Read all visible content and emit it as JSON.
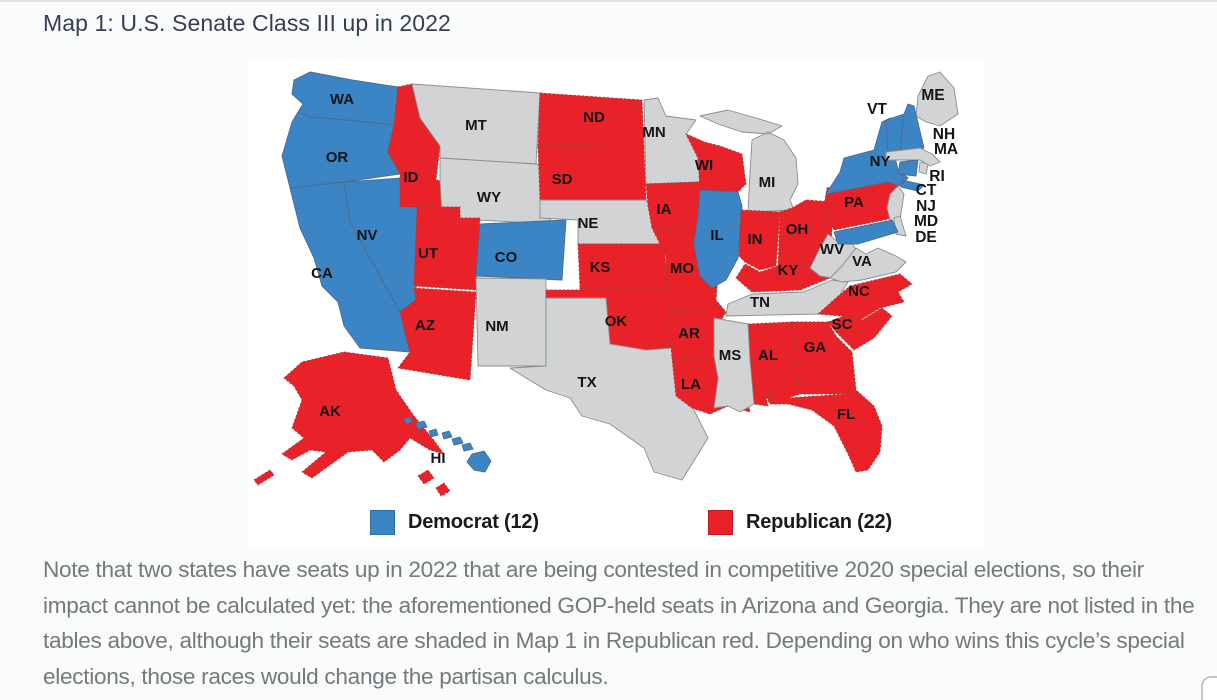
{
  "page": {
    "title": "Map 1: U.S. Senate Class III up in 2022"
  },
  "map": {
    "colors": {
      "democrat": "#3c85c4",
      "republican": "#e92128",
      "not_up": "#d1d3d4"
    },
    "legend": [
      {
        "label": "Democrat (12)",
        "party": "democrat"
      },
      {
        "label": "Republican (22)",
        "party": "republican"
      }
    ],
    "states": [
      {
        "id": "WA",
        "label": "WA",
        "party": "democrat"
      },
      {
        "id": "OR",
        "label": "OR",
        "party": "democrat"
      },
      {
        "id": "CA",
        "label": "CA",
        "party": "democrat"
      },
      {
        "id": "NV",
        "label": "NV",
        "party": "democrat"
      },
      {
        "id": "ID",
        "label": "ID",
        "party": "republican"
      },
      {
        "id": "MT",
        "label": "MT",
        "party": "not_up"
      },
      {
        "id": "WY",
        "label": "WY",
        "party": "not_up"
      },
      {
        "id": "UT",
        "label": "UT",
        "party": "republican"
      },
      {
        "id": "CO",
        "label": "CO",
        "party": "democrat"
      },
      {
        "id": "AZ",
        "label": "AZ",
        "party": "republican"
      },
      {
        "id": "NM",
        "label": "NM",
        "party": "not_up"
      },
      {
        "id": "ND",
        "label": "ND",
        "party": "republican"
      },
      {
        "id": "SD",
        "label": "SD",
        "party": "republican"
      },
      {
        "id": "NE",
        "label": "NE",
        "party": "not_up"
      },
      {
        "id": "KS",
        "label": "KS",
        "party": "republican"
      },
      {
        "id": "OK",
        "label": "OK",
        "party": "republican"
      },
      {
        "id": "TX",
        "label": "TX",
        "party": "not_up"
      },
      {
        "id": "MN",
        "label": "MN",
        "party": "not_up"
      },
      {
        "id": "IA",
        "label": "IA",
        "party": "republican"
      },
      {
        "id": "MO",
        "label": "MO",
        "party": "republican"
      },
      {
        "id": "AR",
        "label": "AR",
        "party": "republican"
      },
      {
        "id": "LA",
        "label": "LA",
        "party": "republican"
      },
      {
        "id": "WI",
        "label": "WI",
        "party": "republican"
      },
      {
        "id": "MI",
        "label": "MI",
        "party": "not_up"
      },
      {
        "id": "IL",
        "label": "IL",
        "party": "democrat"
      },
      {
        "id": "IN",
        "label": "IN",
        "party": "republican"
      },
      {
        "id": "OH",
        "label": "OH",
        "party": "republican"
      },
      {
        "id": "KY",
        "label": "KY",
        "party": "republican"
      },
      {
        "id": "TN",
        "label": "TN",
        "party": "not_up"
      },
      {
        "id": "WV",
        "label": "WV",
        "party": "not_up"
      },
      {
        "id": "VA",
        "label": "VA",
        "party": "not_up"
      },
      {
        "id": "PA",
        "label": "PA",
        "party": "republican"
      },
      {
        "id": "NY",
        "label": "NY",
        "party": "democrat"
      },
      {
        "id": "NC",
        "label": "NC",
        "party": "republican"
      },
      {
        "id": "SC",
        "label": "SC",
        "party": "republican"
      },
      {
        "id": "GA",
        "label": "GA",
        "party": "republican"
      },
      {
        "id": "AL",
        "label": "AL",
        "party": "republican"
      },
      {
        "id": "MS",
        "label": "MS",
        "party": "not_up"
      },
      {
        "id": "FL",
        "label": "FL",
        "party": "republican"
      },
      {
        "id": "AK",
        "label": "AK",
        "party": "republican"
      },
      {
        "id": "HI",
        "label": "HI",
        "party": "democrat"
      },
      {
        "id": "ME",
        "label": "ME",
        "party": "not_up"
      },
      {
        "id": "VT",
        "label": "VT",
        "party": "democrat"
      },
      {
        "id": "NH",
        "label": "NH",
        "party": "democrat"
      },
      {
        "id": "MA",
        "label": "MA",
        "party": "not_up"
      },
      {
        "id": "RI",
        "label": "RI",
        "party": "not_up"
      },
      {
        "id": "CT",
        "label": "CT",
        "party": "democrat"
      },
      {
        "id": "NJ",
        "label": "NJ",
        "party": "not_up"
      },
      {
        "id": "DE",
        "label": "DE",
        "party": "not_up"
      },
      {
        "id": "MD",
        "label": "MD",
        "party": "democrat"
      }
    ]
  },
  "note": {
    "text": "Note that two states have seats up in 2022 that are being contested in competitive 2020 special elections, so their impact cannot be calculated yet: the aforementioned GOP-held seats in Arizona and Georgia. They are not listed in the tables above, although their seats are shaded in Map 1 in Republican red. Depending on who wins this cycle’s special elections, those races would change the partisan calculus."
  }
}
